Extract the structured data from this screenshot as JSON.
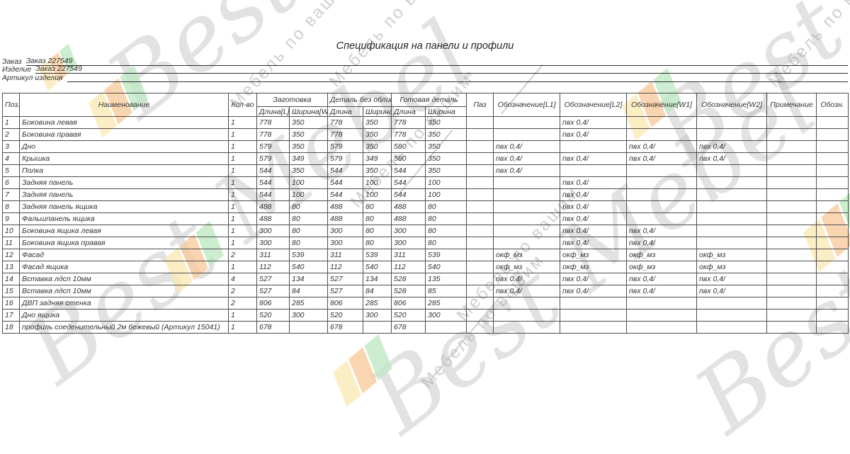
{
  "document": {
    "title": "Спецификация на панели и профили",
    "fields": [
      {
        "label": "Заказ",
        "value": "Заказ 227549"
      },
      {
        "label": "Изделие",
        "value": "Заказ 227549"
      },
      {
        "label": "Артикул изделия",
        "value": ""
      }
    ]
  },
  "table": {
    "header": {
      "pos": "Поз.",
      "name": "Наименование",
      "qty": "Кол-во",
      "zagotovka": "Заготовка",
      "zag_len": "Длина[L]",
      "zag_wid": "Ширина[W]",
      "detail": "Деталь без облиц,",
      "det_len": "Длина",
      "det_wid": "Ширина",
      "ready": "Готовая деталь",
      "ready_len": "Длина",
      "ready_wid": "Ширина",
      "paz": "Паз",
      "l1": "Обозначение[L1]",
      "l2": "Обозначение[L2]",
      "w1": "Обозначение[W1]",
      "w2": "Обозначение[W2]",
      "note": "Примечание",
      "obozn": "Обозн."
    },
    "rows": [
      [
        "1",
        "Боковина левая",
        "1",
        "778",
        "350",
        "778",
        "350",
        "778",
        "350",
        "",
        "",
        "пвх 0,4/",
        "",
        "",
        "",
        ""
      ],
      [
        "2",
        "Боковина правая",
        "1",
        "778",
        "350",
        "778",
        "350",
        "778",
        "350",
        "",
        "",
        "пвх 0,4/",
        "",
        "",
        "",
        ""
      ],
      [
        "3",
        "Дно",
        "1",
        "579",
        "350",
        "579",
        "350",
        "580",
        "350",
        "",
        "пвх 0,4/",
        "",
        "пвх 0,4/",
        "пвх 0,4/",
        "",
        ""
      ],
      [
        "4",
        "Крышка",
        "1",
        "579",
        "349",
        "579",
        "349",
        "580",
        "350",
        "",
        "пвх 0,4/",
        "пвх 0,4/",
        "пвх 0,4/",
        "пвх 0,4/",
        "",
        ""
      ],
      [
        "5",
        "Полка",
        "1",
        "544",
        "350",
        "544",
        "350",
        "544",
        "350",
        "",
        "пвх 0,4/",
        "",
        "",
        "",
        "",
        ""
      ],
      [
        "6",
        "Задняя панель",
        "1",
        "544",
        "100",
        "544",
        "100",
        "544",
        "100",
        "",
        "",
        "пвх 0,4/",
        "",
        "",
        "",
        ""
      ],
      [
        "7",
        "Задняя панель",
        "1",
        "544",
        "100",
        "544",
        "100",
        "544",
        "100",
        "",
        "",
        "пвх 0,4/",
        "",
        "",
        "",
        ""
      ],
      [
        "8",
        "Задняя панель ящика",
        "1",
        "488",
        "80",
        "488",
        "80",
        "488",
        "80",
        "",
        "",
        "пвх 0,4/",
        "",
        "",
        "",
        ""
      ],
      [
        "9",
        "Фальшпанель ящика",
        "1",
        "488",
        "80",
        "488",
        "80",
        "488",
        "80",
        "",
        "",
        "пвх 0,4/",
        "",
        "",
        "",
        ""
      ],
      [
        "10",
        "Боковина ящика левая",
        "1",
        "300",
        "80",
        "300",
        "80",
        "300",
        "80",
        "",
        "",
        "пвх 0,4/",
        "пвх 0,4/",
        "",
        "",
        ""
      ],
      [
        "11",
        "Боковина ящика правая",
        "1",
        "300",
        "80",
        "300",
        "80",
        "300",
        "80",
        "",
        "",
        "пвх 0,4/",
        "пвх 0,4/",
        "",
        "",
        ""
      ],
      [
        "12",
        "Фасад",
        "2",
        "311",
        "539",
        "311",
        "539",
        "311",
        "539",
        "",
        "окф_мз",
        "окф_мз",
        "окф_мз",
        "окф_мз",
        "",
        ""
      ],
      [
        "13",
        "Фасад ящика",
        "1",
        "112",
        "540",
        "112",
        "540",
        "112",
        "540",
        "",
        "окф_мз",
        "окф_мз",
        "окф_мз",
        "окф_мз",
        "",
        ""
      ],
      [
        "14",
        "Вставка лдсп 10мм",
        "4",
        "527",
        "134",
        "527",
        "134",
        "528",
        "135",
        "",
        "пвх 0,4/",
        "пвх 0,4/",
        "пвх 0,4/",
        "пвх 0,4/",
        "",
        ""
      ],
      [
        "15",
        "Вставка лдсп 10мм",
        "2",
        "527",
        "84",
        "527",
        "84",
        "528",
        "85",
        "",
        "пвх 0,4/",
        "пвх 0,4/",
        "пвх 0,4/",
        "пвх 0,4/",
        "",
        ""
      ],
      [
        "16",
        "ДВП задняя стенка",
        "2",
        "806",
        "285",
        "806",
        "285",
        "806",
        "285",
        "",
        "",
        "",
        "",
        "",
        "",
        ""
      ],
      [
        "17",
        "Дно ящика",
        "1",
        "520",
        "300",
        "520",
        "300",
        "520",
        "300",
        "",
        "",
        "",
        "",
        "",
        "",
        ""
      ],
      [
        "18",
        "профиль соеденительный 2м бежевый (Артикул 15041)",
        "1",
        "678",
        "",
        "678",
        "",
        "678",
        "",
        "",
        "",
        "",
        "",
        "",
        "",
        ""
      ]
    ]
  },
  "watermark": {
    "script_text": "Best Mebel",
    "tagline": "Мебель по вашим",
    "colors": {
      "orange": "#f8cc9d",
      "yellow": "#fbeab5",
      "green": "#bfe9c3",
      "script_gray": "#b9b9b9",
      "tagline_gray": "#a0a0a0"
    }
  }
}
